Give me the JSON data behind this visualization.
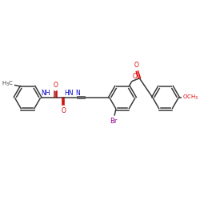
{
  "bond_color": "#3a3a3a",
  "atom_colors": {
    "O": "#dd0000",
    "N": "#0000cc",
    "Br": "#990099",
    "C": "#3a3a3a"
  },
  "figsize": [
    2.5,
    2.5
  ],
  "dpi": 100,
  "r_hex": 17,
  "lw": 1.1
}
